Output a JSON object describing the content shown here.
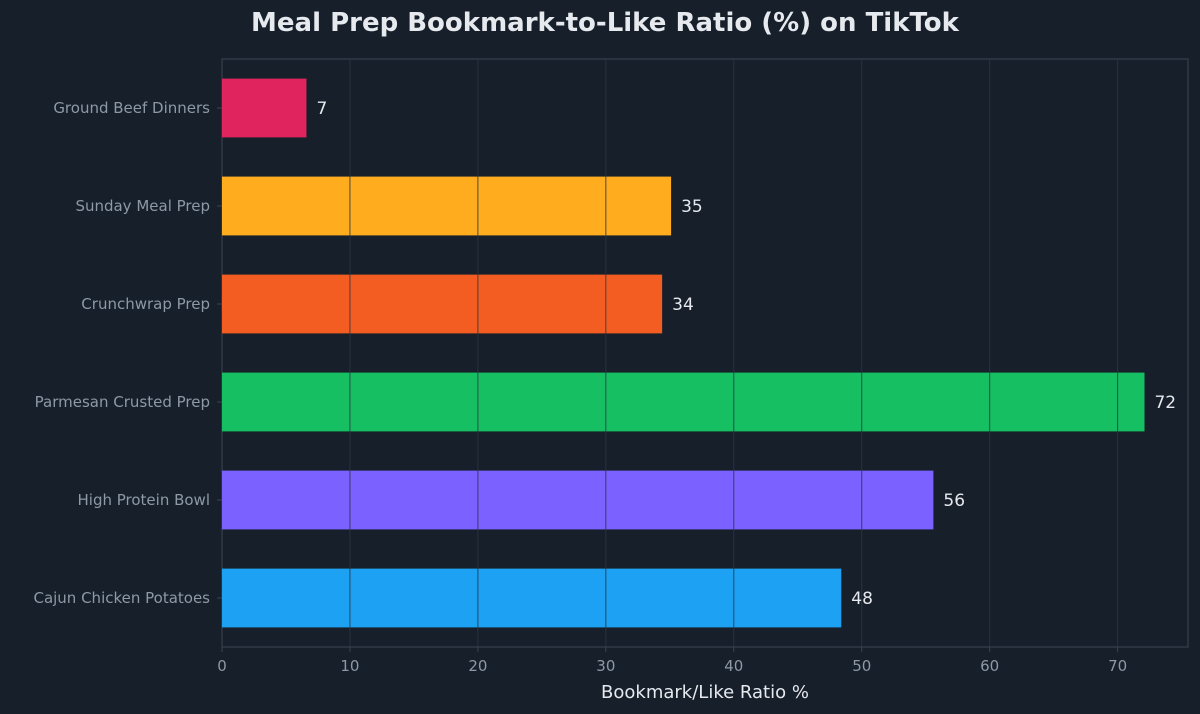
{
  "chart_data": {
    "type": "bar",
    "orientation": "horizontal",
    "title": "Meal Prep Bookmark-to-Like Ratio (%) on TikTok",
    "xlabel": "Bookmark/Like Ratio %",
    "ylabel": "",
    "xlim": [
      0,
      75.5
    ],
    "xticks": [
      0,
      10,
      20,
      30,
      40,
      50,
      60,
      70
    ],
    "grid": "vertical",
    "categories": [
      "Ground Beef Dinners",
      "Sunday Meal Prep",
      "Crunchwrap Prep",
      "Parmesan Crusted Prep",
      "High Protein Bowl",
      "Cajun Chicken Potatoes"
    ],
    "values": [
      6.6,
      35.1,
      34.4,
      72.1,
      55.6,
      48.4
    ],
    "data_labels": [
      "7",
      "35",
      "34",
      "72",
      "56",
      "48"
    ],
    "colors": [
      "#e0245e",
      "#ffad1f",
      "#f45d22",
      "#17bf63",
      "#7b61ff",
      "#1da1f2"
    ]
  },
  "theme": {
    "background": "#161f2a",
    "axis_color": "#3c4652",
    "grid_color": "#2c3744",
    "tick_text_color": "#8e99a6",
    "text_color": "#e6e9ed"
  }
}
